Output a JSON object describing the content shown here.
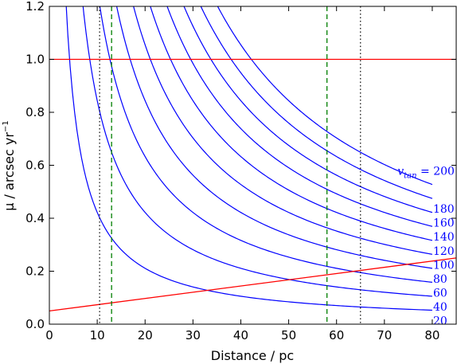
{
  "chart_data": {
    "type": "line",
    "xlabel": "Distance / pc",
    "ylabel_main": "μ / arcsec yr",
    "ylabel_exp": "−1",
    "xlim": [
      0,
      85
    ],
    "ylim": [
      0,
      1.2
    ],
    "x_ticks": [
      0,
      10,
      20,
      30,
      40,
      50,
      60,
      70,
      80
    ],
    "x_tick_labels": [
      "0",
      "10",
      "20",
      "30",
      "40",
      "50",
      "60",
      "70",
      "80"
    ],
    "y_ticks": [
      0.0,
      0.2,
      0.4,
      0.6,
      0.8,
      1.0,
      1.2
    ],
    "y_tick_labels": [
      "0.0",
      "0.2",
      "0.4",
      "0.6",
      "0.8",
      "1.0",
      "1.2"
    ],
    "grid": false,
    "colors": {
      "curves": "#0000ff",
      "limits": "#ff0000",
      "dashed": "#007f00",
      "dotted": "#000000"
    },
    "velocity_curves": {
      "formula": "mu = v_tan / (4.74 * d)",
      "label_prefix_main": "v",
      "label_prefix_sub": "tan",
      "label_equals": " = ",
      "velocities": [
        20,
        40,
        60,
        80,
        100,
        120,
        140,
        160,
        180,
        200
      ],
      "labels": [
        "20",
        "40",
        "60",
        "80",
        "100",
        "120",
        "140",
        "160",
        "180",
        "200"
      ]
    },
    "horizontal_line": {
      "y": 1.0
    },
    "rising_line": {
      "x": [
        0,
        85
      ],
      "y": [
        0.05,
        0.25
      ]
    },
    "dashed_vlines": [
      13,
      58
    ],
    "dotted_vlines": [
      10.5,
      65
    ]
  }
}
